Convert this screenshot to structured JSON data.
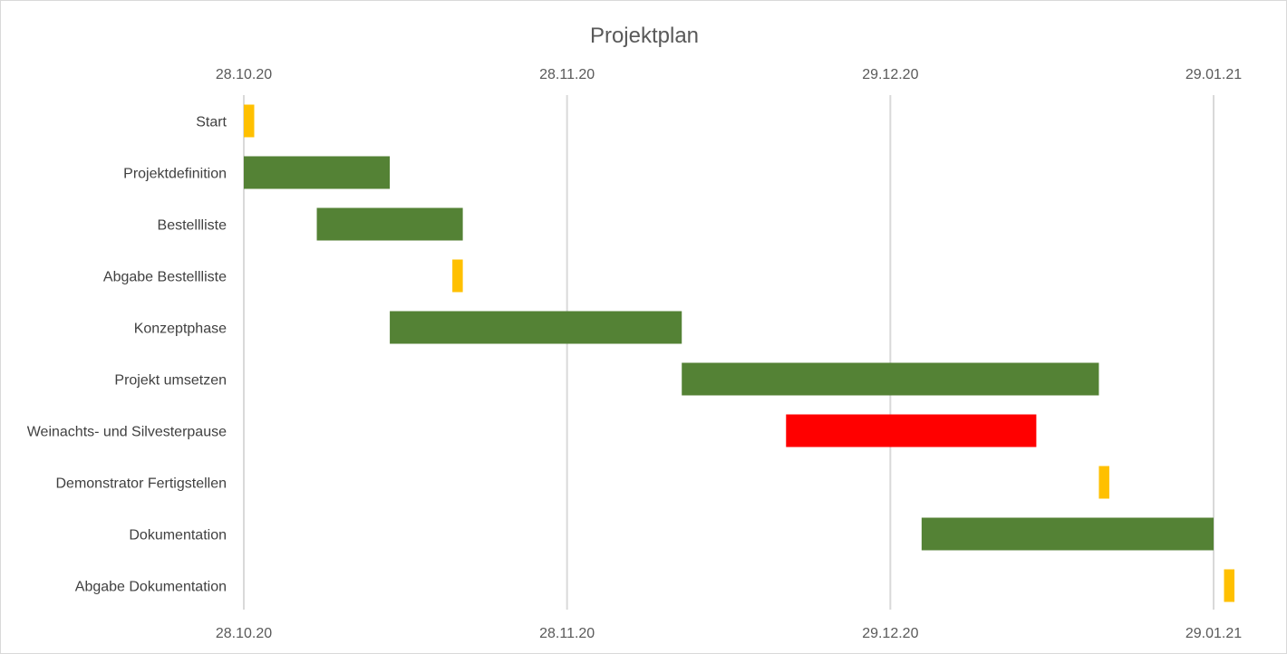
{
  "chart_data": {
    "type": "bar",
    "orientation": "horizontal-gantt",
    "title": "Projektplan",
    "x_axis": {
      "min": "28.10.20",
      "max": "29.01.21",
      "ticks": [
        "28.10.20",
        "28.11.20",
        "29.12.20",
        "29.01.21"
      ],
      "position": "top and bottom"
    },
    "grid": true,
    "legend": "none",
    "tasks": [
      {
        "name": "Start",
        "start": "28.10.20",
        "end": "29.10.20",
        "color": "#FFC000"
      },
      {
        "name": "Projektdefinition",
        "start": "28.10.20",
        "end": "11.11.20",
        "color": "#548235"
      },
      {
        "name": "Bestellliste ",
        "start": "04.11.20",
        "end": "18.11.20",
        "color": "#548235"
      },
      {
        "name": "Abgabe Bestellliste",
        "start": "17.11.20",
        "end": "18.11.20",
        "color": "#FFC000"
      },
      {
        "name": "Konzeptphase",
        "start": "11.11.20",
        "end": "09.12.20",
        "color": "#548235"
      },
      {
        "name": "Projekt umsetzen",
        "start": "09.12.20",
        "end": "18.01.21",
        "color": "#548235"
      },
      {
        "name": "Weinachts- und Silvesterpause",
        "start": "19.12.20",
        "end": "12.01.21",
        "color": "#FF0000"
      },
      {
        "name": "Demonstrator Fertigstellen",
        "start": "18.01.21",
        "end": "19.01.21",
        "color": "#FFC000"
      },
      {
        "name": "Dokumentation",
        "start": "01.01.21",
        "end": "29.01.21",
        "color": "#548235"
      },
      {
        "name": "Abgabe Dokumentation",
        "start": "30.01.21",
        "end": "31.01.21",
        "color": "#FFC000"
      }
    ]
  }
}
